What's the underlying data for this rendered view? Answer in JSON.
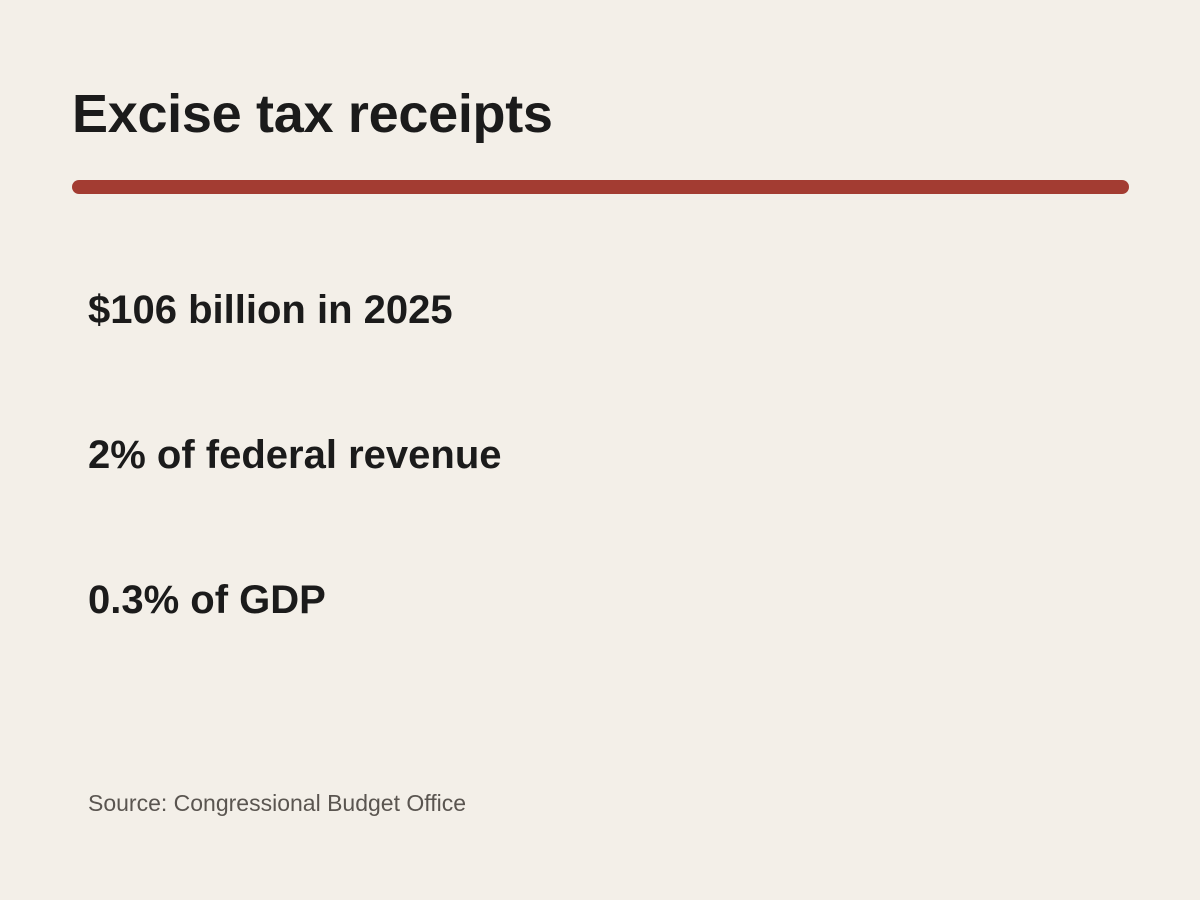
{
  "title": "Excise tax receipts",
  "accent_color": "#a33c32",
  "stats": [
    {
      "text": "$106 billion in 2025"
    },
    {
      "text": "2% of federal revenue"
    },
    {
      "text": "0.3% of GDP"
    }
  ],
  "source": "Source: Congressional Budget Office"
}
